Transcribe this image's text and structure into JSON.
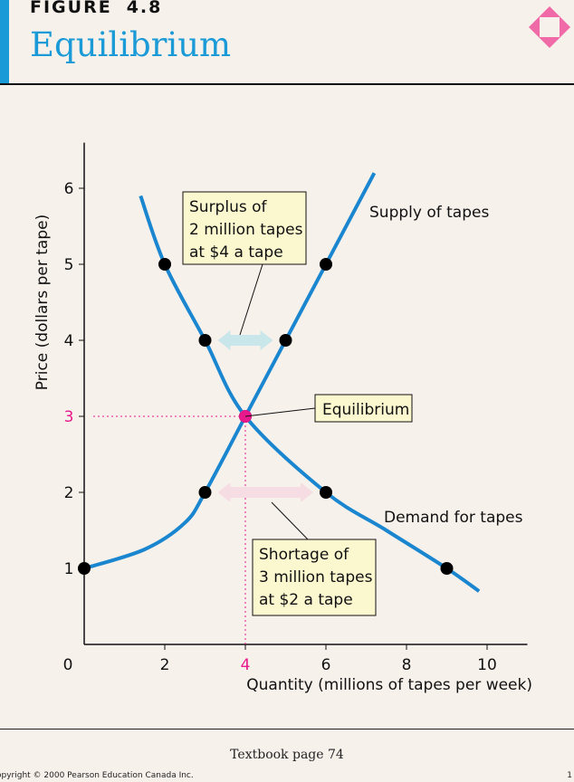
{
  "header": {
    "figure_label": "FIGURE",
    "figure_number": "4.8",
    "title": "Equilibrium",
    "accent_color": "#1a9ad6",
    "diamond_color": "#ef6aa6"
  },
  "footer": {
    "page_reference": "Textbook page 74",
    "copyright": "opyright © 2000 Pearson Education Canada Inc.",
    "page_number": "1"
  },
  "chart_data": {
    "type": "line",
    "xlabel": "Quantity (millions of tapes per week)",
    "ylabel": "Price (dollars per tape)",
    "xlim": [
      0,
      11
    ],
    "ylim": [
      0,
      6.6
    ],
    "xticks": [
      0,
      2,
      4,
      6,
      8,
      10
    ],
    "yticks": [
      1,
      2,
      3,
      4,
      5,
      6
    ],
    "grid": false,
    "series": [
      {
        "name": "Supply of tapes",
        "color": "#1a86cf",
        "curve": [
          [
            0,
            1
          ],
          [
            1.5,
            1.25
          ],
          [
            2.5,
            1.6
          ],
          [
            3,
            2
          ],
          [
            4,
            3
          ],
          [
            5,
            4
          ],
          [
            6,
            5
          ],
          [
            7.2,
            6.2
          ]
        ],
        "points": [
          [
            0,
            1
          ],
          [
            3,
            2
          ],
          [
            4,
            3
          ],
          [
            5,
            4
          ],
          [
            6,
            5
          ]
        ]
      },
      {
        "name": "Demand for tapes",
        "color": "#1a86cf",
        "curve": [
          [
            1.4,
            5.9
          ],
          [
            2,
            5
          ],
          [
            3,
            4
          ],
          [
            4,
            3
          ],
          [
            6,
            2
          ],
          [
            7.5,
            1.5
          ],
          [
            9,
            1
          ],
          [
            9.8,
            0.7
          ]
        ],
        "points": [
          [
            2,
            5
          ],
          [
            3,
            4
          ],
          [
            6,
            2
          ],
          [
            9,
            1
          ]
        ]
      }
    ],
    "equilibrium": {
      "x": 4,
      "y": 3,
      "label": "Equilibrium",
      "color": "#e8198c"
    },
    "annotations": [
      {
        "text": [
          "Surplus of",
          "2 million tapes",
          "at $4 a tape"
        ],
        "price": 4,
        "from": 3,
        "to": 5,
        "arrow_color": "#c9e6ea"
      },
      {
        "text": [
          "Shortage of",
          "3 million tapes",
          "at $2 a tape"
        ],
        "price": 2,
        "from": 3,
        "to": 6,
        "arrow_color": "#f6dde3"
      }
    ]
  }
}
